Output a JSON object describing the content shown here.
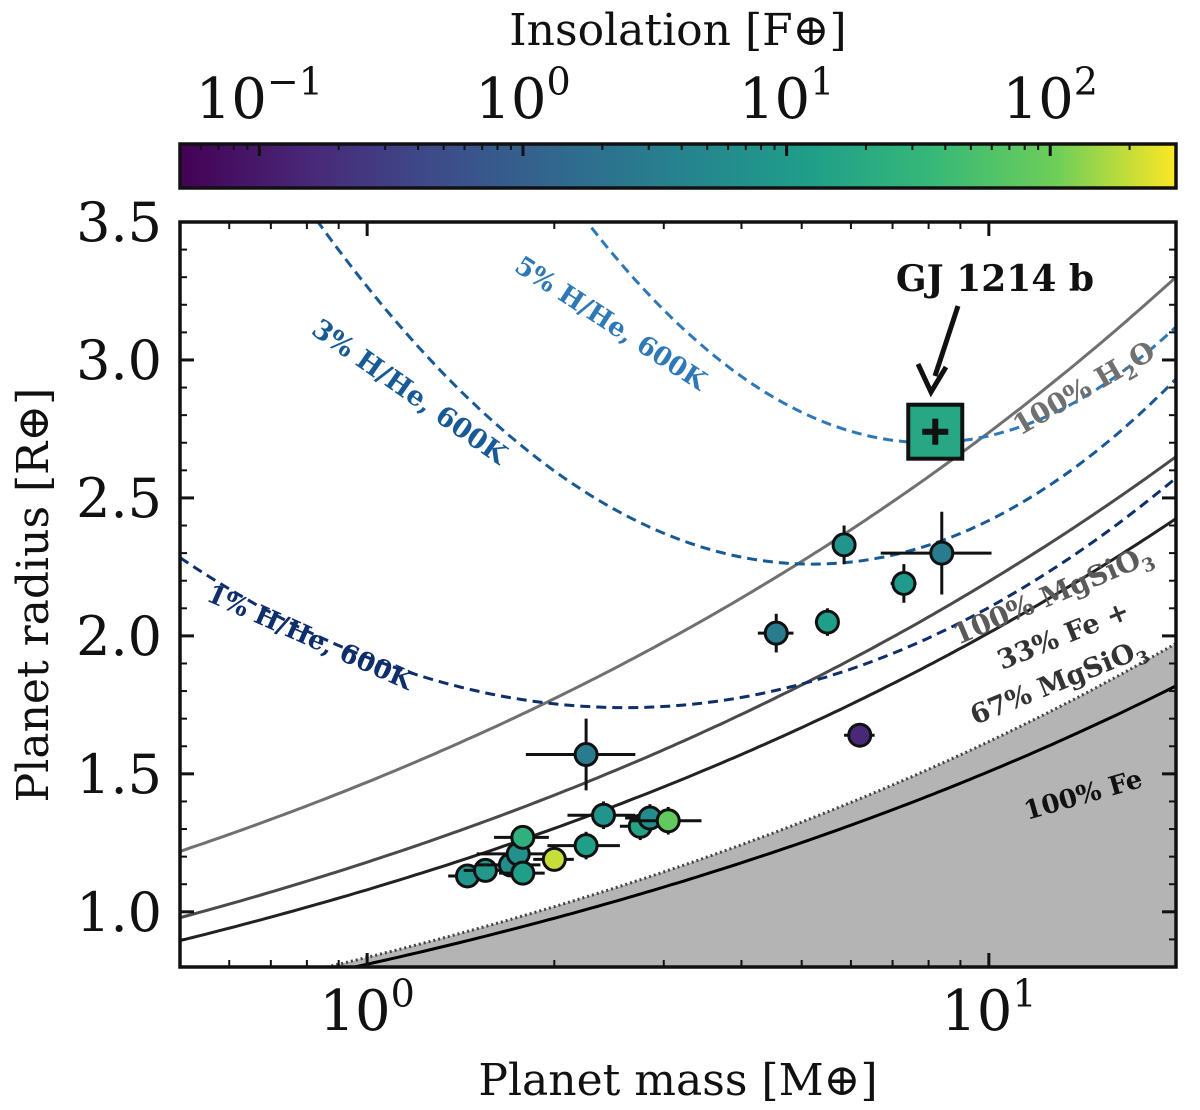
{
  "chart_data": {
    "type": "scatter",
    "xlabel": "Planet mass [M⊕]",
    "ylabel": "Planet radius [R⊕]",
    "xscale": "log",
    "xlim": [
      0.5,
      20
    ],
    "ylim": [
      0.8,
      3.5
    ],
    "x_ticks": [
      {
        "value": 1,
        "base": "10",
        "exp": "0"
      },
      {
        "value": 10,
        "base": "10",
        "exp": "1"
      }
    ],
    "y_ticks": [
      1.0,
      1.5,
      2.0,
      2.5,
      3.0,
      3.5
    ],
    "y_tick_labels": [
      "1.0",
      "1.5",
      "2.0",
      "2.5",
      "3.0",
      "3.5"
    ],
    "colorbar": {
      "label": "Insolation [F⊕]",
      "scale": "log",
      "range": [
        0.05,
        300
      ],
      "colormap": "viridis",
      "ticks": [
        {
          "value": 0.1,
          "base": "10",
          "exp": "−1"
        },
        {
          "value": 1,
          "base": "10",
          "exp": "0"
        },
        {
          "value": 10,
          "base": "10",
          "exp": "1"
        },
        {
          "value": 100,
          "base": "10",
          "exp": "2"
        }
      ]
    },
    "highlight": {
      "name": "GJ 1214 b",
      "mass": 8.2,
      "radius": 2.74,
      "mass_err": 0.2,
      "radius_err": 0.05,
      "insolation": 17
    },
    "points": [
      {
        "mass": 1.45,
        "radius": 1.13,
        "mass_err": 0.1,
        "radius_err": 0.03,
        "insolation": 8
      },
      {
        "mass": 1.55,
        "radius": 1.15,
        "mass_err": 0.12,
        "radius_err": 0.03,
        "insolation": 9
      },
      {
        "mass": 1.7,
        "radius": 1.17,
        "mass_err": 0.2,
        "radius_err": 0.04,
        "insolation": 6
      },
      {
        "mass": 1.75,
        "radius": 1.21,
        "mass_err": 0.25,
        "radius_err": 0.05,
        "insolation": 7
      },
      {
        "mass": 1.78,
        "radius": 1.14,
        "mass_err": 0.15,
        "radius_err": 0.04,
        "insolation": 12
      },
      {
        "mass": 1.78,
        "radius": 1.27,
        "mass_err": 0.18,
        "radius_err": 0.04,
        "insolation": 25
      },
      {
        "mass": 2.0,
        "radius": 1.19,
        "mass_err": 0.15,
        "radius_err": 0.04,
        "insolation": 200
      },
      {
        "mass": 2.25,
        "radius": 1.24,
        "mass_err": 0.3,
        "radius_err": 0.05,
        "insolation": 12
      },
      {
        "mass": 2.25,
        "radius": 1.57,
        "mass_err": 0.45,
        "radius_err": 0.13,
        "insolation": 3
      },
      {
        "mass": 2.4,
        "radius": 1.35,
        "mass_err": 0.3,
        "radius_err": 0.05,
        "insolation": 8
      },
      {
        "mass": 2.75,
        "radius": 1.31,
        "mass_err": 0.2,
        "radius_err": 0.05,
        "insolation": 15
      },
      {
        "mass": 2.85,
        "radius": 1.34,
        "mass_err": 0.25,
        "radius_err": 0.05,
        "insolation": 6
      },
      {
        "mass": 3.05,
        "radius": 1.33,
        "mass_err": 0.4,
        "radius_err": 0.05,
        "insolation": 80
      },
      {
        "mass": 4.55,
        "radius": 2.01,
        "mass_err": 0.3,
        "radius_err": 0.07,
        "insolation": 3
      },
      {
        "mass": 5.5,
        "radius": 2.05,
        "mass_err": 0.25,
        "radius_err": 0.05,
        "insolation": 12
      },
      {
        "mass": 5.85,
        "radius": 2.33,
        "mass_err": 0.25,
        "radius_err": 0.07,
        "insolation": 8
      },
      {
        "mass": 6.2,
        "radius": 1.64,
        "mass_err": 0.35,
        "radius_err": 0.02,
        "insolation": 0.15
      },
      {
        "mass": 7.3,
        "radius": 2.19,
        "mass_err": 0.35,
        "radius_err": 0.07,
        "insolation": 10
      },
      {
        "mass": 8.4,
        "radius": 2.3,
        "mass_err": 1.7,
        "radius_err": 0.15,
        "insolation": 3
      }
    ],
    "models": [
      {
        "name": "100% H2O",
        "label_main": "100% H",
        "label_sub": "2",
        "label_tail": "O",
        "color": "#707070",
        "style": "solid",
        "rad_r1": 1.47
      },
      {
        "name": "100% MgSiO3",
        "label_main": "100% MgSiO",
        "label_sub": "3",
        "label_tail": "",
        "color": "#4a4a4a",
        "style": "solid",
        "rad_r1": 1.18
      },
      {
        "name": "33% Fe + 67% MgSiO3",
        "label_line1": "33% Fe +",
        "label_main": "67% MgSiO",
        "label_sub": "3",
        "label_tail": "",
        "color": "#222222",
        "style": "solid",
        "rad_r1": 1.08
      },
      {
        "name": "100% Fe",
        "label_main": "100% Fe",
        "color": "#000000",
        "style": "solid",
        "rad_r1": 0.81
      },
      {
        "name": "1% H/He, 600K",
        "label_main": "1% H/He, 600K",
        "color": "#0e2f6b",
        "style": "dashed",
        "scale": 1.74,
        "m_min": 2.6,
        "k": 0.2
      },
      {
        "name": "3% H/He, 600K",
        "label_main": "3% H/He, 600K",
        "color": "#175a96",
        "style": "dashed",
        "scale": 2.26,
        "m_min": 5.2,
        "k": 0.37
      },
      {
        "name": "5% H/He, 600K",
        "label_main": "5% H/He, 600K",
        "color": "#2f78b8",
        "style": "dashed",
        "scale": 2.7,
        "m_min": 8.0,
        "k": 0.5
      }
    ]
  }
}
